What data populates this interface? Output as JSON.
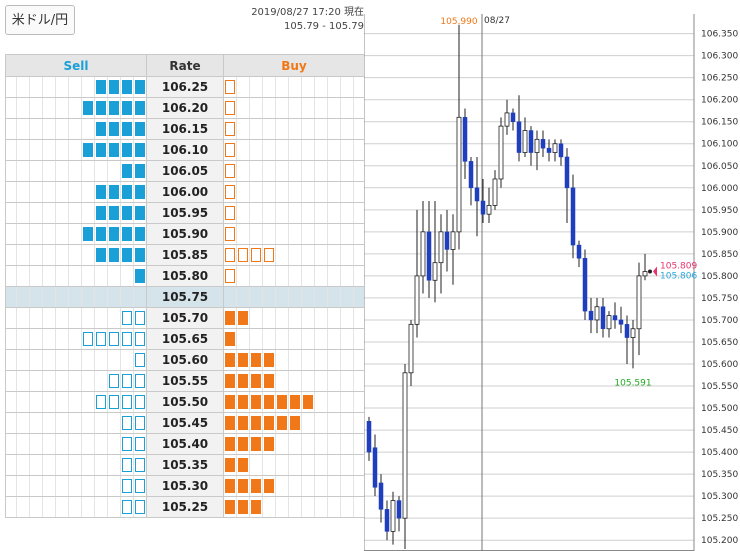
{
  "pair_button": "米ドル/円",
  "timestamp": "2019/08/27 17:20 現在",
  "bid_ask": "105.79 - 105.79",
  "book": {
    "headers": {
      "sell": "Sell",
      "rate": "Rate",
      "buy": "Buy"
    },
    "current_rate": "105.75",
    "rows": [
      {
        "rate": "106.25",
        "sell": 4,
        "sell_style": "fill",
        "buy": 1,
        "buy_style": "outline"
      },
      {
        "rate": "106.20",
        "sell": 5,
        "sell_style": "fill",
        "buy": 1,
        "buy_style": "outline"
      },
      {
        "rate": "106.15",
        "sell": 4,
        "sell_style": "fill",
        "buy": 1,
        "buy_style": "outline"
      },
      {
        "rate": "106.10",
        "sell": 5,
        "sell_style": "fill",
        "buy": 1,
        "buy_style": "outline"
      },
      {
        "rate": "106.05",
        "sell": 2,
        "sell_style": "fill",
        "buy": 1,
        "buy_style": "outline"
      },
      {
        "rate": "106.00",
        "sell": 4,
        "sell_style": "fill",
        "buy": 1,
        "buy_style": "outline"
      },
      {
        "rate": "105.95",
        "sell": 4,
        "sell_style": "fill",
        "buy": 1,
        "buy_style": "outline"
      },
      {
        "rate": "105.90",
        "sell": 5,
        "sell_style": "fill",
        "buy": 1,
        "buy_style": "outline"
      },
      {
        "rate": "105.85",
        "sell": 4,
        "sell_style": "fill",
        "buy": 4,
        "buy_style": "outline"
      },
      {
        "rate": "105.80",
        "sell": 1,
        "sell_style": "fill",
        "buy": 1,
        "buy_style": "outline"
      },
      {
        "rate": "105.75",
        "sell": 0,
        "sell_style": "fill",
        "buy": 0,
        "buy_style": "fill",
        "current": true
      },
      {
        "rate": "105.70",
        "sell": 2,
        "sell_style": "outline",
        "buy": 2,
        "buy_style": "fill"
      },
      {
        "rate": "105.65",
        "sell": 5,
        "sell_style": "outline",
        "buy": 1,
        "buy_style": "fill"
      },
      {
        "rate": "105.60",
        "sell": 1,
        "sell_style": "outline",
        "buy": 4,
        "buy_style": "fill"
      },
      {
        "rate": "105.55",
        "sell": 3,
        "sell_style": "outline",
        "buy": 4,
        "buy_style": "fill"
      },
      {
        "rate": "105.50",
        "sell": 4,
        "sell_style": "outline",
        "buy": 7,
        "buy_style": "fill"
      },
      {
        "rate": "105.45",
        "sell": 2,
        "sell_style": "outline",
        "buy": 6,
        "buy_style": "fill"
      },
      {
        "rate": "105.40",
        "sell": 2,
        "sell_style": "outline",
        "buy": 4,
        "buy_style": "fill"
      },
      {
        "rate": "105.35",
        "sell": 2,
        "sell_style": "outline",
        "buy": 2,
        "buy_style": "fill"
      },
      {
        "rate": "105.30",
        "sell": 2,
        "sell_style": "outline",
        "buy": 4,
        "buy_style": "fill"
      },
      {
        "rate": "105.25",
        "sell": 2,
        "sell_style": "outline",
        "buy": 3,
        "buy_style": "fill"
      }
    ]
  },
  "chart_data": {
    "type": "candlestick",
    "date_label": "08/27",
    "ylim": [
      105.18,
      106.39
    ],
    "yticks": [
      "106.350",
      "106.300",
      "106.250",
      "106.200",
      "106.150",
      "106.100",
      "106.050",
      "106.000",
      "105.950",
      "105.900",
      "105.850",
      "105.800",
      "105.750",
      "105.700",
      "105.650",
      "105.600",
      "105.550",
      "105.500",
      "105.450",
      "105.400",
      "105.350",
      "105.300",
      "105.250",
      "105.200"
    ],
    "annotations": {
      "high": "105.990",
      "low": "105.591",
      "ask": "105.809",
      "bid": "105.806"
    },
    "colors": {
      "up": "#ffffff",
      "down": "#1f3fbf",
      "high_label": "#f07818",
      "low_label": "#22aa22",
      "ask_label": "#e8336a",
      "bid_label": "#29a8e0"
    },
    "candles": [
      {
        "o": 105.47,
        "h": 105.48,
        "l": 105.38,
        "c": 105.4
      },
      {
        "o": 105.41,
        "h": 105.44,
        "l": 105.3,
        "c": 105.32
      },
      {
        "o": 105.33,
        "h": 105.35,
        "l": 105.24,
        "c": 105.27
      },
      {
        "o": 105.27,
        "h": 105.29,
        "l": 105.2,
        "c": 105.22
      },
      {
        "o": 105.22,
        "h": 105.31,
        "l": 105.19,
        "c": 105.29
      },
      {
        "o": 105.29,
        "h": 105.3,
        "l": 105.22,
        "c": 105.25
      },
      {
        "o": 105.25,
        "h": 105.6,
        "l": 105.18,
        "c": 105.58
      },
      {
        "o": 105.58,
        "h": 105.7,
        "l": 105.55,
        "c": 105.69
      },
      {
        "o": 105.69,
        "h": 105.95,
        "l": 105.66,
        "c": 105.8
      },
      {
        "o": 105.8,
        "h": 105.97,
        "l": 105.76,
        "c": 105.9
      },
      {
        "o": 105.9,
        "h": 105.97,
        "l": 105.75,
        "c": 105.79
      },
      {
        "o": 105.79,
        "h": 105.97,
        "l": 105.74,
        "c": 105.83
      },
      {
        "o": 105.83,
        "h": 105.94,
        "l": 105.76,
        "c": 105.9
      },
      {
        "o": 105.9,
        "h": 105.95,
        "l": 105.81,
        "c": 105.86
      },
      {
        "o": 105.86,
        "h": 105.94,
        "l": 105.78,
        "c": 105.9
      },
      {
        "o": 105.9,
        "h": 106.37,
        "l": 105.86,
        "c": 106.16
      },
      {
        "o": 106.16,
        "h": 106.18,
        "l": 106.02,
        "c": 106.06
      },
      {
        "o": 106.06,
        "h": 106.07,
        "l": 105.96,
        "c": 106.0
      },
      {
        "o": 106.0,
        "h": 106.07,
        "l": 105.89,
        "c": 105.97
      },
      {
        "o": 105.97,
        "h": 106.02,
        "l": 105.92,
        "c": 105.94
      },
      {
        "o": 105.94,
        "h": 106.0,
        "l": 105.92,
        "c": 105.96
      },
      {
        "o": 105.96,
        "h": 106.04,
        "l": 105.95,
        "c": 106.02
      },
      {
        "o": 106.02,
        "h": 106.16,
        "l": 106.0,
        "c": 106.14
      },
      {
        "o": 106.14,
        "h": 106.2,
        "l": 106.12,
        "c": 106.17
      },
      {
        "o": 106.17,
        "h": 106.18,
        "l": 106.13,
        "c": 106.15
      },
      {
        "o": 106.15,
        "h": 106.21,
        "l": 106.06,
        "c": 106.08
      },
      {
        "o": 106.08,
        "h": 106.16,
        "l": 106.07,
        "c": 106.13
      },
      {
        "o": 106.13,
        "h": 106.14,
        "l": 106.05,
        "c": 106.08
      },
      {
        "o": 106.08,
        "h": 106.13,
        "l": 106.04,
        "c": 106.11
      },
      {
        "o": 106.11,
        "h": 106.13,
        "l": 106.07,
        "c": 106.09
      },
      {
        "o": 106.09,
        "h": 106.11,
        "l": 106.06,
        "c": 106.08
      },
      {
        "o": 106.08,
        "h": 106.11,
        "l": 106.06,
        "c": 106.1
      },
      {
        "o": 106.1,
        "h": 106.11,
        "l": 106.05,
        "c": 106.07
      },
      {
        "o": 106.07,
        "h": 106.09,
        "l": 105.92,
        "c": 106.0
      },
      {
        "o": 106.0,
        "h": 106.03,
        "l": 105.84,
        "c": 105.87
      },
      {
        "o": 105.87,
        "h": 105.88,
        "l": 105.82,
        "c": 105.84
      },
      {
        "o": 105.84,
        "h": 105.86,
        "l": 105.7,
        "c": 105.72
      },
      {
        "o": 105.72,
        "h": 105.75,
        "l": 105.67,
        "c": 105.7
      },
      {
        "o": 105.7,
        "h": 105.75,
        "l": 105.67,
        "c": 105.73
      },
      {
        "o": 105.73,
        "h": 105.75,
        "l": 105.66,
        "c": 105.68
      },
      {
        "o": 105.68,
        "h": 105.72,
        "l": 105.66,
        "c": 105.71
      },
      {
        "o": 105.71,
        "h": 105.74,
        "l": 105.68,
        "c": 105.7
      },
      {
        "o": 105.7,
        "h": 105.73,
        "l": 105.67,
        "c": 105.69
      },
      {
        "o": 105.69,
        "h": 105.71,
        "l": 105.6,
        "c": 105.66
      },
      {
        "o": 105.66,
        "h": 105.7,
        "l": 105.59,
        "c": 105.68
      },
      {
        "o": 105.68,
        "h": 105.83,
        "l": 105.62,
        "c": 105.8
      },
      {
        "o": 105.8,
        "h": 105.85,
        "l": 105.79,
        "c": 105.81
      }
    ]
  }
}
